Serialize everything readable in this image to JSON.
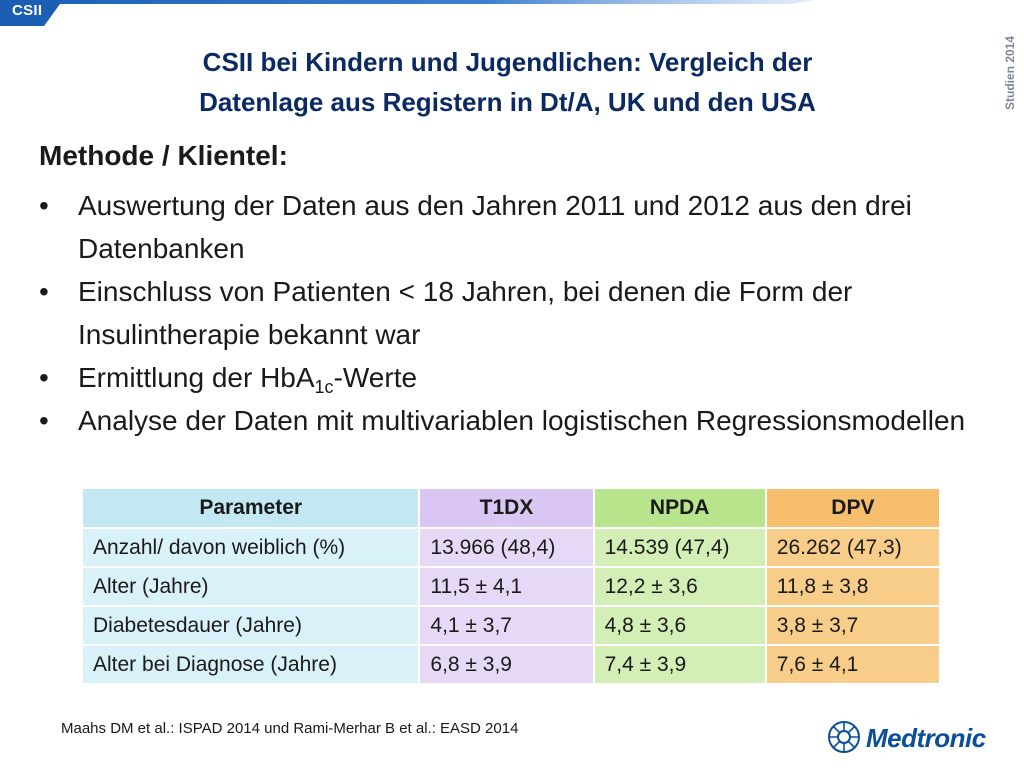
{
  "header": {
    "tab_label": "CSII",
    "side_label": "Studien 2014",
    "banner_color": "#1a5fb4"
  },
  "slide": {
    "title_line1": "CSII bei Kindern und Jugendlichen: Vergleich der",
    "title_line2": "Datenlage aus Registern in Dt/A, UK und den USA",
    "section_heading": "Methode / Klientel:",
    "bullets": {
      "b1": "Auswertung der Daten aus den Jahren 2011 und 2012 aus den drei Datenbanken",
      "b2": "Einschluss von Patienten < 18 Jahren, bei denen die Form der Insulintherapie bekannt war",
      "b3_pre": "Ermittlung der HbA",
      "b3_sub": "1c",
      "b3_post": "-Werte",
      "b4": "Analyse der Daten mit multivariablen logistischen Regressionsmodellen"
    }
  },
  "table": {
    "headers": [
      "Parameter",
      "T1DX",
      "NPDA",
      "DPV"
    ],
    "rows": [
      [
        "Anzahl/ davon weiblich (%)",
        "13.966 (48,4)",
        "14.539 (47,4)",
        "26.262 (47,3)"
      ],
      [
        "Alter (Jahre)",
        "11,5 ± 4,1",
        "12,2 ± 3,6",
        "11,8 ± 3,8"
      ],
      [
        "Diabetesdauer (Jahre)",
        "4,1 ± 3,7",
        "4,8 ± 3,6",
        "3,8 ± 3,7"
      ],
      [
        "Alter bei Diagnose (Jahre)",
        "6,8 ± 3,9",
        "7,4 ± 3,9",
        "7,6 ± 4,1"
      ]
    ]
  },
  "footer": {
    "citation": "Maahs DM et al.: ISPAD 2014 und Rami-Merhar B et al.: EASD 2014",
    "logo_text": "Medtronic",
    "logo_icon": "medtronic-logo-icon"
  }
}
